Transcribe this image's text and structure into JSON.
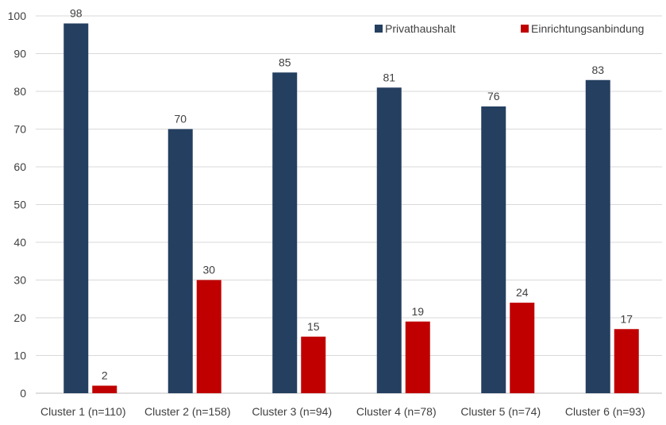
{
  "chart_data": {
    "type": "bar",
    "categories": [
      "Cluster 1 (n=110)",
      "Cluster 2 (n=158)",
      "Cluster 3 (n=94)",
      "Cluster 4 (n=78)",
      "Cluster 5 (n=74)",
      "Cluster 6 (n=93)"
    ],
    "series": [
      {
        "name": "Privathaushalt",
        "color": "#243F60",
        "values": [
          98,
          70,
          85,
          81,
          76,
          83
        ]
      },
      {
        "name": "Einrichtungsanbindung",
        "color": "#C00000",
        "values": [
          2,
          30,
          15,
          19,
          24,
          17
        ]
      }
    ],
    "ylim": [
      0,
      100
    ],
    "yticks": [
      0,
      10,
      20,
      30,
      40,
      50,
      60,
      70,
      80,
      90,
      100
    ],
    "grid": true,
    "legend_position": "top-right",
    "data_labels": true
  }
}
